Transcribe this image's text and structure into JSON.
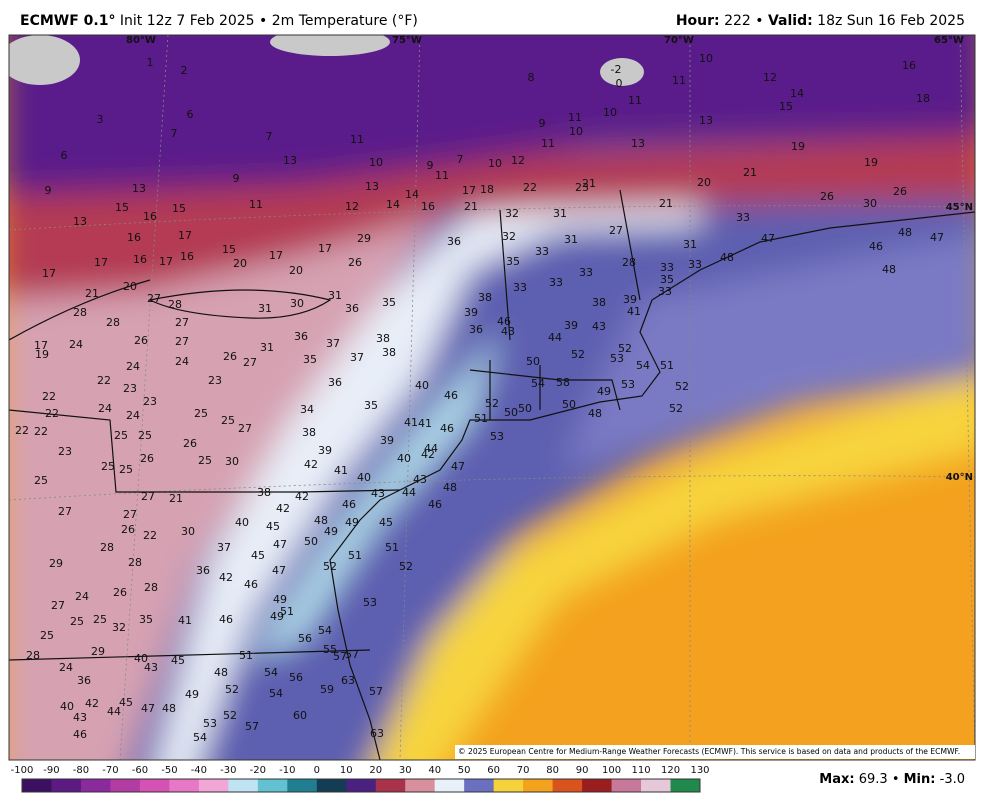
{
  "header": {
    "model": "ECMWF 0.1°",
    "init": "Init 12z 7 Feb 2025",
    "separator": "•",
    "variable": "2m Temperature (°F)",
    "hour_label": "Hour:",
    "hour": 222,
    "valid_label": "Valid:",
    "valid": "18z Sun 16 Feb 2025"
  },
  "map": {
    "grid_labels": [
      "80°W",
      "75°W",
      "70°W",
      "65°W",
      "45°N",
      "40°N"
    ],
    "temperatures": [
      1,
      2,
      6,
      3,
      7,
      6,
      7,
      11,
      8,
      -2,
      0,
      10,
      11,
      12,
      14,
      15,
      16,
      18,
      9,
      13,
      10,
      9,
      7,
      10,
      12,
      11,
      13,
      14,
      9,
      13,
      13,
      15,
      16,
      15,
      11,
      12,
      14,
      16,
      21,
      17,
      18,
      22,
      23,
      21,
      9,
      11,
      11,
      10,
      10,
      11,
      13,
      13,
      19,
      19,
      20,
      21,
      21,
      26,
      30,
      26,
      16,
      17,
      15,
      20,
      17,
      20,
      17,
      29,
      26,
      16,
      17,
      16,
      17,
      17,
      21,
      20,
      27,
      28,
      27,
      28,
      28,
      26,
      27,
      31,
      30,
      31,
      36,
      35,
      36,
      32,
      31,
      32,
      31,
      27,
      33,
      35,
      28,
      33,
      33,
      33,
      38,
      39,
      36,
      46,
      43,
      38,
      39,
      41,
      31,
      33,
      35,
      33,
      33,
      33,
      47,
      48,
      46,
      48,
      47,
      48,
      43,
      39,
      44,
      50,
      52,
      52,
      53,
      54,
      51,
      52,
      52,
      54,
      58,
      49,
      53,
      50,
      48,
      52,
      50,
      50,
      51,
      53,
      46,
      40,
      41,
      41,
      46,
      44,
      42,
      47,
      48,
      46,
      43,
      44,
      40,
      40,
      39,
      41,
      42,
      39,
      38,
      34,
      35,
      36,
      38,
      38,
      37,
      37,
      35,
      36,
      31,
      27,
      26,
      24,
      24,
      22,
      23,
      22,
      23,
      23,
      25,
      25,
      27,
      26,
      25,
      30,
      38,
      42,
      42,
      46,
      43,
      45,
      51,
      52,
      48,
      49,
      50,
      49,
      51,
      52,
      45,
      45,
      47,
      47,
      40,
      37,
      42,
      46,
      36,
      49,
      51,
      49,
      46,
      41,
      53,
      54,
      56,
      55,
      57,
      57,
      59,
      63,
      57,
      63,
      60,
      57,
      53,
      54,
      52,
      54,
      52,
      54,
      56,
      48,
      49,
      51,
      45,
      40,
      43,
      29,
      28,
      24,
      36,
      40,
      42,
      45,
      44,
      47,
      48,
      43,
      46,
      35,
      32,
      25,
      25,
      25,
      27,
      24,
      26,
      28,
      28,
      29,
      28,
      26,
      27,
      22,
      30,
      27,
      21,
      27,
      25,
      23,
      22,
      22,
      24,
      24,
      25,
      25,
      25,
      25,
      26,
      22,
      19,
      17,
      24
    ],
    "credit": "© 2025 European Centre for Medium-Range Weather Forecasts (ECMWF). This service is based on data and products of the ECMWF."
  },
  "legend": {
    "ticks": [
      -100,
      -90,
      -80,
      -70,
      -60,
      -50,
      -40,
      -30,
      -20,
      -10,
      0,
      10,
      20,
      30,
      40,
      50,
      60,
      70,
      80,
      90,
      100,
      110,
      120,
      130
    ],
    "colors": [
      "#3b1060",
      "#5c1a82",
      "#8b2a9c",
      "#b23ca4",
      "#d452b4",
      "#e678c6",
      "#f2a6d6",
      "#bfe3f2",
      "#62c2d2",
      "#1f7f90",
      "#143c55",
      "#4a2080",
      "#a8324a",
      "#d9909e",
      "#e8f0fa",
      "#6b6fc0",
      "#f6d23a",
      "#f3a21e",
      "#d9531c",
      "#9a1e1e",
      "#c8789a",
      "#e6c8d8",
      "#1f8a4c"
    ]
  },
  "footer": {
    "max_label": "Max:",
    "max": 69.3,
    "min_label": "Min:",
    "min": "-3.0"
  }
}
